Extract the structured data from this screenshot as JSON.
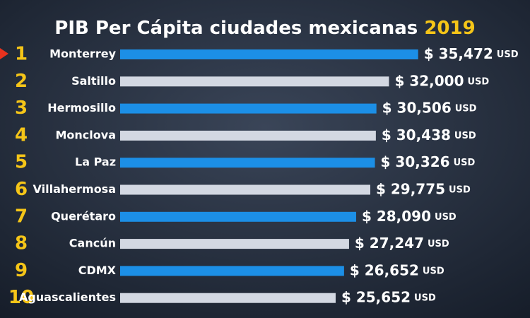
{
  "chart_data": {
    "type": "bar",
    "orientation": "horizontal",
    "title": "PIB Per Cápita ciudades mexicanas",
    "title_year": "2019",
    "ranks": [
      1,
      2,
      3,
      4,
      5,
      6,
      7,
      8,
      9,
      10
    ],
    "categories": [
      "Monterrey",
      "Saltillo",
      "Hermosillo",
      "Monclova",
      "La Paz",
      "Villahermosa",
      "Querétaro",
      "Cancún",
      "CDMX",
      "Aguascalientes"
    ],
    "values": [
      35472,
      32000,
      30506,
      30438,
      30326,
      29775,
      28090,
      27247,
      26652,
      25652
    ],
    "value_labels": [
      "$ 35,472",
      "$ 32,000",
      "$ 30,506",
      "$ 30,438",
      "$ 30,326",
      "$ 29,775",
      "$ 28,090",
      "$ 27,247",
      "$ 26,652",
      "$ 25,652"
    ],
    "unit": "USD",
    "colors": [
      "#1c8fe6",
      "#d3d8e2",
      "#1c8fe6",
      "#d3d8e2",
      "#1c8fe6",
      "#d3d8e2",
      "#1c8fe6",
      "#d3d8e2",
      "#1c8fe6",
      "#d3d8e2"
    ],
    "xlim": [
      0,
      36000
    ]
  }
}
